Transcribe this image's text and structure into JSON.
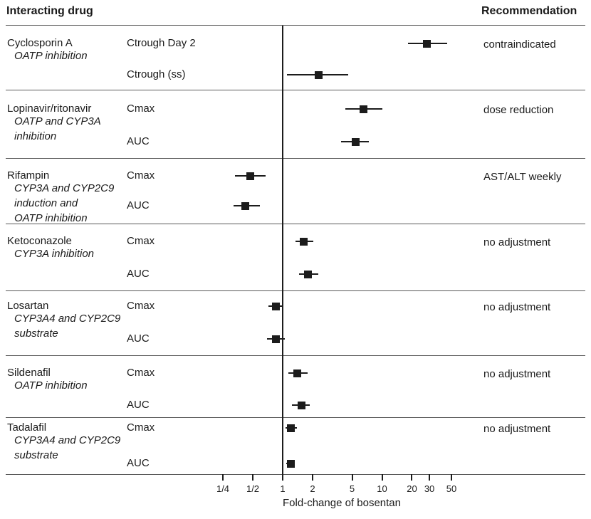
{
  "header": {
    "left": "Interacting drug",
    "right": "Recommendation"
  },
  "colors": {
    "text": "#1a1a1a",
    "rule_gray": "#5a5a5a",
    "marker_black": "#1c1c1c"
  },
  "chart_data": {
    "type": "forest",
    "xlabel": "Fold-change of bosentan",
    "x_scale": "log",
    "x_ticks": [
      "1/4",
      "1/2",
      "1",
      "2",
      "5",
      "10",
      "20",
      "30",
      "50"
    ],
    "x_tick_values": [
      0.25,
      0.5,
      1,
      2,
      5,
      10,
      20,
      30,
      50
    ],
    "x_range": [
      0.2,
      70
    ],
    "reference_line": 1,
    "grid": false,
    "legend": "none",
    "groups": [
      {
        "drug": "Cyclosporin A",
        "mechanism": "OATP inhibition",
        "recommendation": "contraindicated",
        "rows": [
          {
            "param": "Ctrough Day 2",
            "estimate": 28.5,
            "ci_low": 18.3,
            "ci_high": 45
          },
          {
            "param": "Ctrough (ss)",
            "estimate": 2.3,
            "ci_low": 1.1,
            "ci_high": 4.6
          }
        ]
      },
      {
        "drug": "Lopinavir/ritonavir",
        "mechanism": "OATP and CYP3A\ninhibition",
        "recommendation": "dose reduction",
        "rows": [
          {
            "param": "Cmax",
            "estimate": 6.5,
            "ci_low": 4.3,
            "ci_high": 10.1
          },
          {
            "param": "AUC",
            "estimate": 5.4,
            "ci_low": 3.9,
            "ci_high": 7.4
          }
        ]
      },
      {
        "drug": "Rifampin",
        "mechanism": "CYP3A and CYP2C9\ninduction and\nOATP inhibition",
        "recommendation": "AST/ALT weekly",
        "rows": [
          {
            "param": "Cmax",
            "estimate": 0.47,
            "ci_low": 0.33,
            "ci_high": 0.67
          },
          {
            "param": "AUC",
            "estimate": 0.42,
            "ci_low": 0.32,
            "ci_high": 0.59
          }
        ]
      },
      {
        "drug": "Ketoconazole",
        "mechanism": "CYP3A inhibition",
        "recommendation": "no adjustment",
        "rows": [
          {
            "param": "Cmax",
            "estimate": 1.64,
            "ci_low": 1.35,
            "ci_high": 2.03
          },
          {
            "param": "AUC",
            "estimate": 1.81,
            "ci_low": 1.46,
            "ci_high": 2.28
          }
        ]
      },
      {
        "drug": "Losartan",
        "mechanism": "CYP3A4 and CYP2C9\nsubstrate",
        "recommendation": "no adjustment",
        "rows": [
          {
            "param": "Cmax",
            "estimate": 0.86,
            "ci_low": 0.72,
            "ci_high": 1.02
          },
          {
            "param": "AUC",
            "estimate": 0.85,
            "ci_low": 0.7,
            "ci_high": 1.05
          }
        ]
      },
      {
        "drug": "Sildenafil",
        "mechanism": "OATP inhibition",
        "recommendation": "no adjustment",
        "rows": [
          {
            "param": "Cmax",
            "estimate": 1.41,
            "ci_low": 1.14,
            "ci_high": 1.78
          },
          {
            "param": "AUC",
            "estimate": 1.54,
            "ci_low": 1.24,
            "ci_high": 1.87
          }
        ]
      },
      {
        "drug": "Tadalafil",
        "mechanism": "CYP3A4 and CYP2C9\nsubstrate",
        "recommendation": "no adjustment",
        "rows": [
          {
            "param": "Cmax",
            "estimate": 1.2,
            "ci_low": 1.07,
            "ci_high": 1.39
          },
          {
            "param": "AUC",
            "estimate": 1.2,
            "ci_low": 1.09,
            "ci_high": 1.3
          }
        ]
      }
    ]
  }
}
